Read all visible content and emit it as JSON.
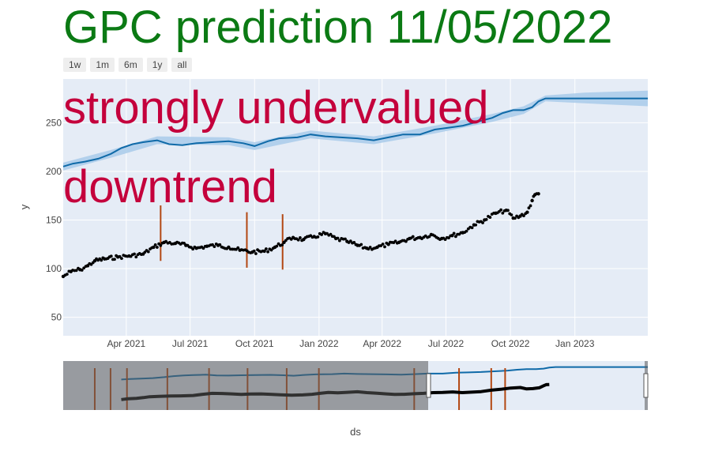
{
  "title": "GPC prediction 11/05/2022",
  "range_buttons": [
    "1w",
    "1m",
    "6m",
    "1y",
    "all"
  ],
  "chart_data": {
    "type": "scatter",
    "xlabel": "ds",
    "ylabel": "y",
    "x_tick_labels": [
      "Apr 2021",
      "Jul 2021",
      "Oct 2021",
      "Jan 2022",
      "Apr 2022",
      "Jul 2022",
      "Oct 2022",
      "Jan 2023"
    ],
    "y_tick_values": [
      50,
      100,
      150,
      200,
      250
    ],
    "xlim": [
      "2021-01-01",
      "2023-04-15"
    ],
    "ylim": [
      31,
      295
    ],
    "annotations": [
      "strongly undervalued",
      "downtrend"
    ],
    "grid": true,
    "colors": {
      "forecast": "#0f6aa8",
      "band": "#a9cbea",
      "observed": "#000000",
      "changepoints": "#b34712",
      "plot_bg": "#e5ecf6",
      "annotation": "#c4003c",
      "title": "#0b7a14"
    },
    "forecast": {
      "name": "yhat",
      "points": [
        [
          "2021-01-01",
          205
        ],
        [
          "2021-01-15",
          208
        ],
        [
          "2021-02-01",
          210
        ],
        [
          "2021-02-20",
          213
        ],
        [
          "2021-03-10",
          218
        ],
        [
          "2021-03-25",
          224
        ],
        [
          "2021-04-10",
          228
        ],
        [
          "2021-04-25",
          230
        ],
        [
          "2021-05-15",
          232
        ],
        [
          "2021-06-01",
          228
        ],
        [
          "2021-06-20",
          227
        ],
        [
          "2021-07-10",
          229
        ],
        [
          "2021-08-01",
          230
        ],
        [
          "2021-08-25",
          231
        ],
        [
          "2021-09-15",
          229
        ],
        [
          "2021-10-01",
          226
        ],
        [
          "2021-10-20",
          231
        ],
        [
          "2021-11-05",
          234
        ],
        [
          "2021-12-01",
          235
        ],
        [
          "2021-12-20",
          238
        ],
        [
          "2022-01-10",
          236
        ],
        [
          "2022-02-01",
          235
        ],
        [
          "2022-02-25",
          234
        ],
        [
          "2022-03-20",
          232
        ],
        [
          "2022-04-10",
          235
        ],
        [
          "2022-05-01",
          238
        ],
        [
          "2022-05-25",
          238
        ],
        [
          "2022-06-15",
          243
        ],
        [
          "2022-07-05",
          245
        ],
        [
          "2022-07-25",
          247
        ],
        [
          "2022-08-15",
          251
        ],
        [
          "2022-09-05",
          255
        ],
        [
          "2022-09-20",
          260
        ],
        [
          "2022-10-05",
          263
        ],
        [
          "2022-10-20",
          263
        ],
        [
          "2022-11-01",
          266
        ],
        [
          "2022-11-10",
          272
        ],
        [
          "2022-11-20",
          275
        ],
        [
          "2023-01-15",
          275
        ],
        [
          "2023-04-15",
          275
        ]
      ],
      "band": [
        [
          "2021-01-01",
          201,
          209
        ],
        [
          "2021-03-10",
          214,
          222
        ],
        [
          "2021-05-15",
          228,
          236
        ],
        [
          "2021-08-25",
          227,
          235
        ],
        [
          "2021-10-01",
          222,
          230
        ],
        [
          "2021-12-20",
          234,
          242
        ],
        [
          "2022-03-20",
          228,
          236
        ],
        [
          "2022-06-15",
          239,
          247
        ],
        [
          "2022-09-05",
          251,
          259
        ],
        [
          "2022-10-20",
          259,
          267
        ],
        [
          "2022-11-20",
          272,
          278
        ],
        [
          "2023-01-15",
          270,
          281
        ],
        [
          "2023-04-15",
          267,
          283
        ]
      ]
    },
    "observed": {
      "name": "y",
      "points": [
        [
          "2021-01-01",
          92
        ],
        [
          "2021-01-12",
          97
        ],
        [
          "2021-01-25",
          99
        ],
        [
          "2021-02-05",
          103
        ],
        [
          "2021-02-15",
          108
        ],
        [
          "2021-03-01",
          110
        ],
        [
          "2021-03-20",
          112
        ],
        [
          "2021-04-05",
          113
        ],
        [
          "2021-04-25",
          115
        ],
        [
          "2021-05-10",
          122
        ],
        [
          "2021-05-25",
          127
        ],
        [
          "2021-06-10",
          126
        ],
        [
          "2021-06-25",
          124
        ],
        [
          "2021-07-10",
          121
        ],
        [
          "2021-07-25",
          123
        ],
        [
          "2021-08-10",
          124
        ],
        [
          "2021-08-25",
          122
        ],
        [
          "2021-09-10",
          119
        ],
        [
          "2021-09-28",
          117
        ],
        [
          "2021-10-15",
          118
        ],
        [
          "2021-10-30",
          122
        ],
        [
          "2021-11-12",
          127
        ],
        [
          "2021-11-25",
          132
        ],
        [
          "2021-12-10",
          130
        ],
        [
          "2021-12-25",
          133
        ],
        [
          "2022-01-10",
          136
        ],
        [
          "2022-01-25",
          131
        ],
        [
          "2022-02-10",
          128
        ],
        [
          "2022-02-25",
          124
        ],
        [
          "2022-03-10",
          121
        ],
        [
          "2022-03-25",
          122
        ],
        [
          "2022-04-10",
          125
        ],
        [
          "2022-04-25",
          127
        ],
        [
          "2022-05-10",
          131
        ],
        [
          "2022-05-25",
          132
        ],
        [
          "2022-06-10",
          135
        ],
        [
          "2022-06-25",
          131
        ],
        [
          "2022-07-10",
          134
        ],
        [
          "2022-07-25",
          137
        ],
        [
          "2022-08-10",
          145
        ],
        [
          "2022-08-25",
          150
        ],
        [
          "2022-09-10",
          157
        ],
        [
          "2022-09-25",
          160
        ],
        [
          "2022-10-05",
          152
        ],
        [
          "2022-10-15",
          154
        ],
        [
          "2022-10-25",
          158
        ],
        [
          "2022-11-01",
          170
        ],
        [
          "2022-11-05",
          176
        ],
        [
          "2022-11-10",
          177
        ]
      ]
    },
    "changepoints": [
      {
        "x": "2021-05-20",
        "y_range": [
          108,
          165
        ]
      },
      {
        "x": "2021-09-20",
        "y_range": [
          101,
          158
        ]
      },
      {
        "x": "2021-11-10",
        "y_range": [
          99,
          156
        ]
      }
    ]
  }
}
